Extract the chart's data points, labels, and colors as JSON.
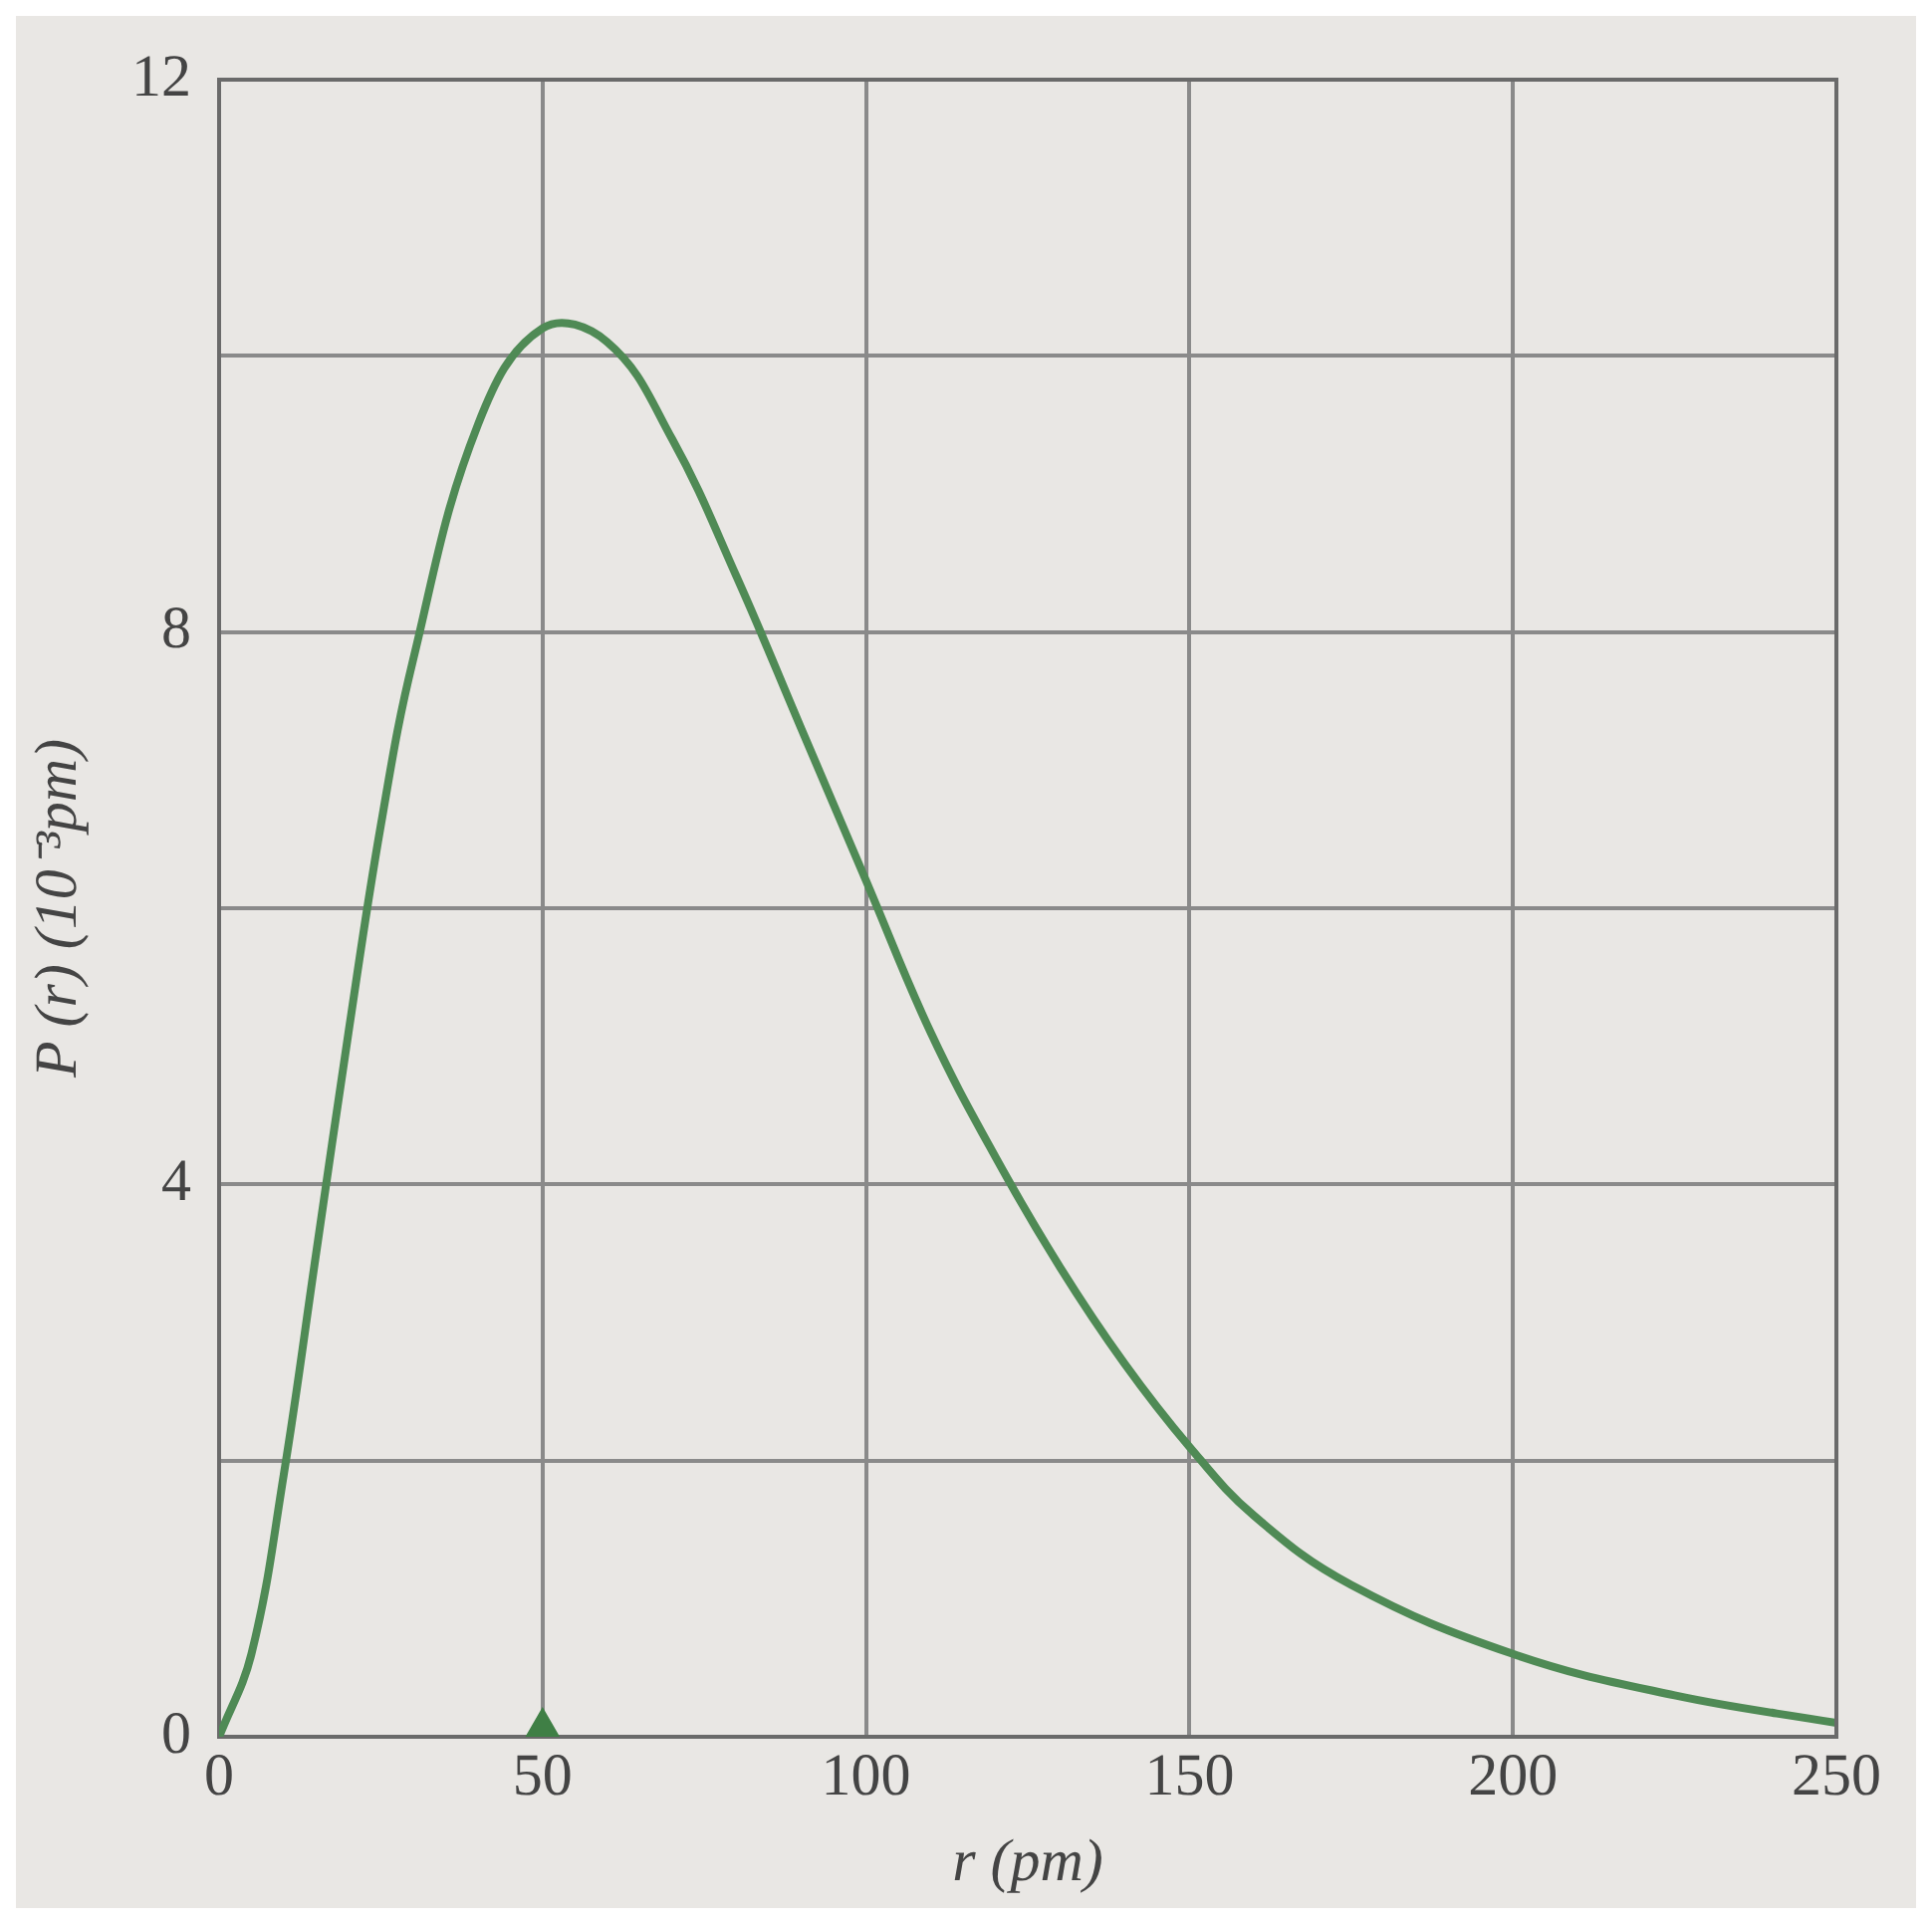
{
  "chart_data": {
    "type": "line",
    "xlabel": "r (pm)",
    "ylabel": "P (r) (10⁻³pm)",
    "xlim": [
      0,
      250
    ],
    "xticks": [
      0,
      50,
      100,
      150,
      200,
      250
    ],
    "ylim": [
      0,
      12
    ],
    "yticks": [
      0,
      {
        "value": 2,
        "label": null
      },
      4,
      {
        "value": 6,
        "label": null
      },
      8,
      {
        "value": 10,
        "label": null
      },
      12
    ],
    "grid": true,
    "line_style": "solid",
    "series": [
      {
        "color": "#4f8a55",
        "marker": "none",
        "x": [
          0,
          5,
          10,
          15,
          20,
          25,
          30,
          40,
          50,
          60,
          70,
          80,
          90,
          100,
          110,
          120,
          130,
          140,
          150,
          160,
          175,
          200,
          225,
          250
        ],
        "values": [
          0,
          0.6,
          1.9,
          3.5,
          5.1,
          6.6,
          7.8,
          9.5,
          10.2,
          10.1,
          9.4,
          8.4,
          7.3,
          6.2,
          5.1,
          4.2,
          3.4,
          2.7,
          2.1,
          1.6,
          1.1,
          0.6,
          0.3,
          0.1
        ]
      },
      {
        "type": "scatter",
        "color": "#3f7f45",
        "marker": "triangle",
        "x": [
          50
        ],
        "values": [
          0
        ]
      }
    ]
  }
}
